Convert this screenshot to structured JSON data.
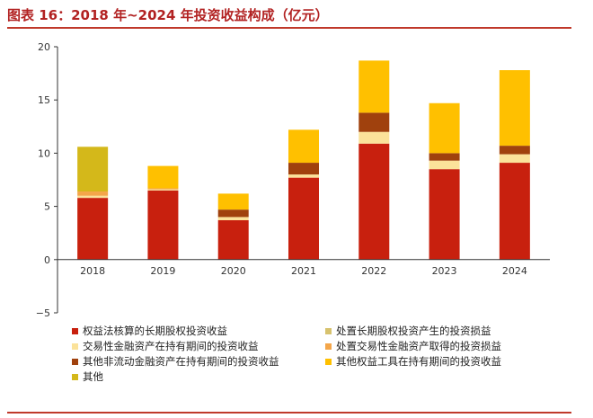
{
  "title": "图表 16：2018 年~2024 年投资收益构成（亿元）",
  "chart_data": {
    "type": "bar",
    "stacked": true,
    "categories": [
      "2018",
      "2019",
      "2020",
      "2021",
      "2022",
      "2023",
      "2024"
    ],
    "ylim": [
      -5,
      20
    ],
    "yticks": [
      -5,
      0,
      5,
      10,
      15,
      20
    ],
    "series": [
      {
        "name": "权益法核算的长期股权投资收益",
        "color": "#c8200e",
        "values": [
          5.8,
          6.5,
          3.7,
          7.7,
          10.9,
          8.5,
          9.1
        ]
      },
      {
        "name": "处置长期股权投资产生的投资损益",
        "color": "#d7c26e",
        "values": [
          0.0,
          0.0,
          0.0,
          0.0,
          0.0,
          0.0,
          0.0
        ]
      },
      {
        "name": "交易性金融资产在持有期间的投资收益",
        "color": "#fbe29a",
        "values": [
          0.2,
          0.1,
          0.3,
          0.3,
          1.1,
          0.8,
          0.8
        ]
      },
      {
        "name": "处置交易性金融资产取得的投资损益",
        "color": "#f4a64a",
        "values": [
          0.4,
          0.1,
          0.0,
          0.0,
          0.0,
          0.0,
          0.0
        ]
      },
      {
        "name": "其他非流动金融资产在持有期间的投资收益",
        "color": "#a0410d",
        "values": [
          0.0,
          0.0,
          0.7,
          1.1,
          1.8,
          0.7,
          0.8
        ]
      },
      {
        "name": "其他权益工具在持有期间的投资收益",
        "color": "#ffc000",
        "values": [
          0.0,
          2.1,
          1.5,
          3.1,
          4.9,
          4.7,
          7.1
        ]
      },
      {
        "name": "其他",
        "color": "#d4b81a",
        "values": [
          4.2,
          0.0,
          0.0,
          0.0,
          0.0,
          0.0,
          0.0
        ]
      }
    ]
  }
}
